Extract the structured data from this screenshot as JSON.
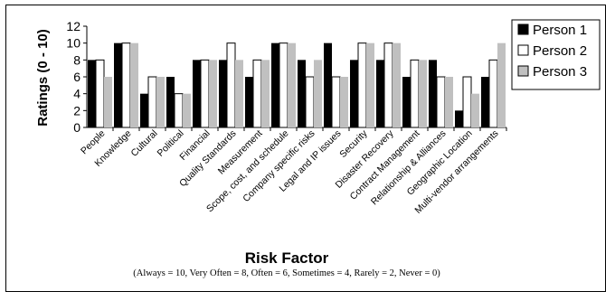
{
  "chart_data": {
    "type": "bar",
    "ylabel": "Ratings (0 - 10)",
    "xlabel": "Risk Factor",
    "note": "(Always = 10, Very Often = 8, Often = 6, Sometimes = 4, Rarely = 2, Never = 0)",
    "ylim": [
      0,
      12
    ],
    "yticks": [
      "0",
      "2",
      "4",
      "6",
      "8",
      "10",
      "12"
    ],
    "grid": false,
    "legend_position": "right",
    "categories": [
      "People",
      "Knowledge",
      "Cultural",
      "Political",
      "Financial",
      "Quality Standards",
      "Measurement",
      "Scope, cost, and schedule",
      "Company specific risks",
      "Legal and IP issues",
      "Security",
      "Disaster Recovery",
      "Contract Management",
      "Relationship & Alliances",
      "Geographic Location",
      "Multi-vendor arrangements"
    ],
    "series": [
      {
        "name": "Person 1",
        "color": "#000000",
        "values": [
          8,
          10,
          4,
          6,
          8,
          8,
          6,
          10,
          8,
          10,
          8,
          8,
          6,
          8,
          2,
          6
        ]
      },
      {
        "name": "Person 2",
        "color": "#ffffff",
        "values": [
          8,
          10,
          6,
          4,
          8,
          10,
          8,
          10,
          6,
          6,
          10,
          10,
          8,
          6,
          6,
          8
        ]
      },
      {
        "name": "Person 3",
        "color": "#c0c0c0",
        "values": [
          6,
          10,
          6,
          4,
          8,
          8,
          8,
          10,
          8,
          6,
          10,
          10,
          8,
          6,
          4,
          10
        ]
      }
    ]
  }
}
